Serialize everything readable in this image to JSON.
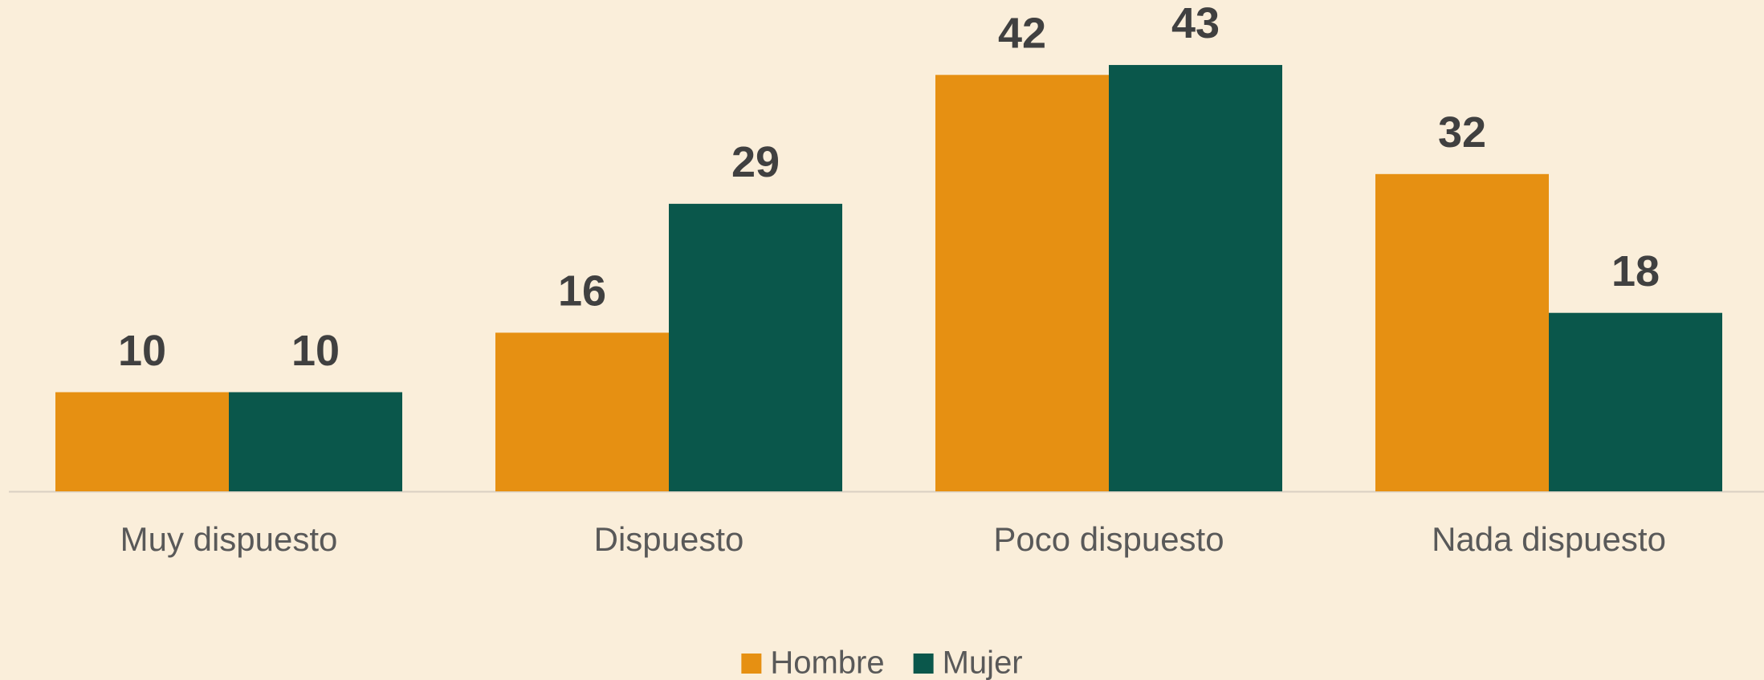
{
  "chart_data": {
    "type": "bar",
    "categories": [
      "Muy dispuesto",
      "Dispuesto",
      "Poco dispuesto",
      "Nada dispuesto"
    ],
    "series": [
      {
        "name": "Hombre",
        "color": "#e69012",
        "values": [
          10,
          16,
          42,
          32
        ]
      },
      {
        "name": "Mujer",
        "color": "#0a574b",
        "values": [
          10,
          29,
          43,
          18
        ]
      }
    ],
    "legend": "bottom"
  }
}
